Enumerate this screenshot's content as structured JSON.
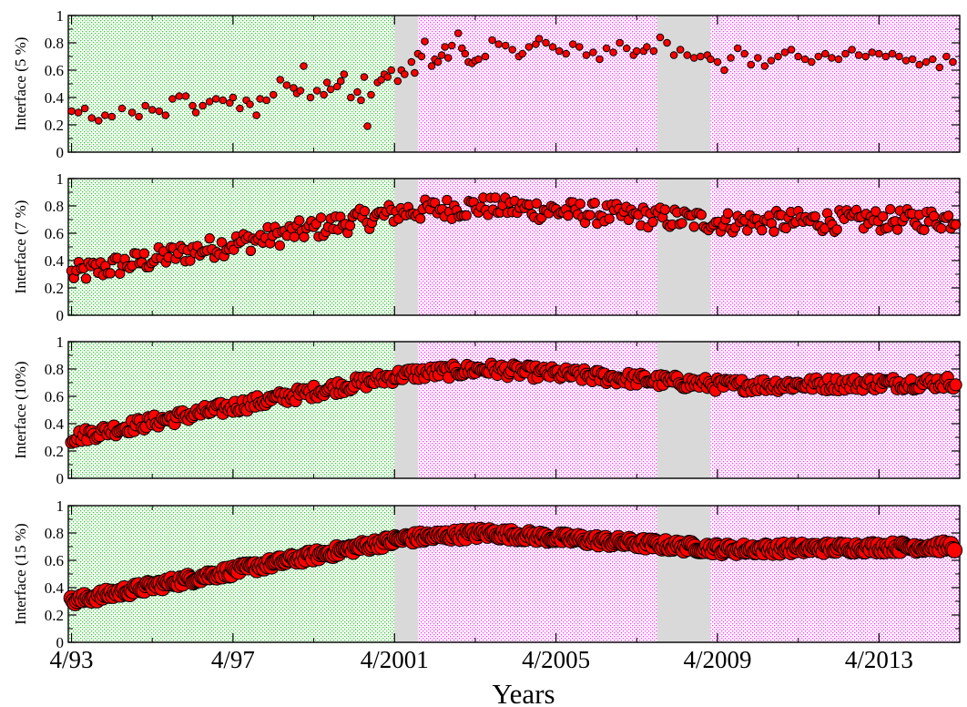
{
  "chart_data": {
    "type": "scatter",
    "xlabel": "Years",
    "x_ticks": [
      "4/93",
      "4/97",
      "4/2001",
      "4/2005",
      "4/2009",
      "4/2013"
    ],
    "x_tick_values": [
      1993.25,
      1997.25,
      2001.25,
      2005.25,
      2009.25,
      2013.25
    ],
    "xlim": [
      1993.17,
      2015.25
    ],
    "y_ticks": [
      "0",
      "0.2",
      "0.4",
      "0.6",
      "0.8",
      "1"
    ],
    "ylim": [
      0,
      1
    ],
    "grid": false,
    "background_regions": [
      {
        "x0": 1993.17,
        "x1": 2001.25,
        "color": "#33cc33",
        "pattern": "dotted"
      },
      {
        "x0": 2001.25,
        "x1": 2001.83,
        "color": "#d9d9d9",
        "pattern": "solid"
      },
      {
        "x0": 2001.83,
        "x1": 2007.75,
        "color": "#ff33ff",
        "pattern": "dotted"
      },
      {
        "x0": 2007.75,
        "x1": 2009.08,
        "color": "#d9d9d9",
        "pattern": "solid"
      },
      {
        "x0": 2009.08,
        "x1": 2015.25,
        "color": "#ff33ff",
        "pattern": "dotted"
      }
    ],
    "marker_color": "#ff0000",
    "panels": [
      {
        "ylabel": "Interface (5 %)",
        "marker_size": "small",
        "points": [
          [
            1993.25,
            0.3
          ],
          [
            1993.42,
            0.29
          ],
          [
            1993.58,
            0.32
          ],
          [
            1993.75,
            0.25
          ],
          [
            1993.92,
            0.23
          ],
          [
            1994.08,
            0.27
          ],
          [
            1994.25,
            0.26
          ],
          [
            1994.5,
            0.32
          ],
          [
            1994.75,
            0.29
          ],
          [
            1994.92,
            0.26
          ],
          [
            1995.08,
            0.34
          ],
          [
            1995.25,
            0.31
          ],
          [
            1995.42,
            0.3
          ],
          [
            1995.58,
            0.27
          ],
          [
            1995.75,
            0.39
          ],
          [
            1995.92,
            0.41
          ],
          [
            1996.08,
            0.41
          ],
          [
            1996.25,
            0.34
          ],
          [
            1996.33,
            0.29
          ],
          [
            1996.5,
            0.34
          ],
          [
            1996.67,
            0.37
          ],
          [
            1996.83,
            0.39
          ],
          [
            1997.0,
            0.38
          ],
          [
            1997.17,
            0.36
          ],
          [
            1997.25,
            0.4
          ],
          [
            1997.42,
            0.32
          ],
          [
            1997.58,
            0.38
          ],
          [
            1997.67,
            0.35
          ],
          [
            1997.83,
            0.27
          ],
          [
            1997.92,
            0.39
          ],
          [
            1998.08,
            0.38
          ],
          [
            1998.25,
            0.42
          ],
          [
            1998.42,
            0.53
          ],
          [
            1998.58,
            0.49
          ],
          [
            1998.75,
            0.47
          ],
          [
            1998.83,
            0.43
          ],
          [
            1998.92,
            0.45
          ],
          [
            1999.0,
            0.63
          ],
          [
            1999.17,
            0.4
          ],
          [
            1999.33,
            0.45
          ],
          [
            1999.5,
            0.42
          ],
          [
            1999.58,
            0.51
          ],
          [
            1999.67,
            0.46
          ],
          [
            1999.83,
            0.48
          ],
          [
            1999.92,
            0.52
          ],
          [
            2000.0,
            0.57
          ],
          [
            2000.17,
            0.4
          ],
          [
            2000.33,
            0.44
          ],
          [
            2000.42,
            0.38
          ],
          [
            2000.5,
            0.55
          ],
          [
            2000.58,
            0.19
          ],
          [
            2000.67,
            0.42
          ],
          [
            2000.83,
            0.51
          ],
          [
            2000.92,
            0.53
          ],
          [
            2001.0,
            0.57
          ],
          [
            2001.08,
            0.55
          ],
          [
            2001.17,
            0.6
          ],
          [
            2001.33,
            0.52
          ],
          [
            2001.42,
            0.6
          ],
          [
            2001.5,
            0.57
          ],
          [
            2001.67,
            0.66
          ],
          [
            2001.75,
            0.58
          ],
          [
            2001.83,
            0.72
          ],
          [
            2001.92,
            0.7
          ],
          [
            2002.0,
            0.81
          ],
          [
            2002.17,
            0.63
          ],
          [
            2002.25,
            0.68
          ],
          [
            2002.33,
            0.66
          ],
          [
            2002.42,
            0.71
          ],
          [
            2002.5,
            0.77
          ],
          [
            2002.58,
            0.69
          ],
          [
            2002.67,
            0.78
          ],
          [
            2002.83,
            0.87
          ],
          [
            2002.92,
            0.76
          ],
          [
            2003.0,
            0.72
          ],
          [
            2003.08,
            0.66
          ],
          [
            2003.17,
            0.65
          ],
          [
            2003.25,
            0.67
          ],
          [
            2003.33,
            0.68
          ],
          [
            2003.5,
            0.7
          ],
          [
            2003.67,
            0.82
          ],
          [
            2003.83,
            0.79
          ],
          [
            2004.0,
            0.78
          ],
          [
            2004.17,
            0.75
          ],
          [
            2004.33,
            0.7
          ],
          [
            2004.42,
            0.72
          ],
          [
            2004.58,
            0.77
          ],
          [
            2004.75,
            0.79
          ],
          [
            2004.83,
            0.83
          ],
          [
            2005.0,
            0.8
          ],
          [
            2005.17,
            0.77
          ],
          [
            2005.33,
            0.74
          ],
          [
            2005.5,
            0.72
          ],
          [
            2005.67,
            0.79
          ],
          [
            2005.83,
            0.77
          ],
          [
            2006.0,
            0.71
          ],
          [
            2006.17,
            0.73
          ],
          [
            2006.33,
            0.68
          ],
          [
            2006.5,
            0.76
          ],
          [
            2006.67,
            0.73
          ],
          [
            2006.83,
            0.8
          ],
          [
            2007.0,
            0.76
          ],
          [
            2007.17,
            0.71
          ],
          [
            2007.25,
            0.74
          ],
          [
            2007.42,
            0.74
          ],
          [
            2007.5,
            0.77
          ],
          [
            2007.67,
            0.74
          ],
          [
            2007.83,
            0.84
          ],
          [
            2008.0,
            0.8
          ],
          [
            2008.17,
            0.71
          ],
          [
            2008.33,
            0.75
          ],
          [
            2008.5,
            0.71
          ],
          [
            2008.67,
            0.69
          ],
          [
            2008.83,
            0.7
          ],
          [
            2009.0,
            0.71
          ],
          [
            2009.08,
            0.68
          ],
          [
            2009.25,
            0.66
          ],
          [
            2009.42,
            0.6
          ],
          [
            2009.58,
            0.69
          ],
          [
            2009.75,
            0.76
          ],
          [
            2009.92,
            0.72
          ],
          [
            2010.08,
            0.64
          ],
          [
            2010.25,
            0.69
          ],
          [
            2010.42,
            0.63
          ],
          [
            2010.58,
            0.67
          ],
          [
            2010.75,
            0.7
          ],
          [
            2010.92,
            0.73
          ],
          [
            2011.08,
            0.75
          ],
          [
            2011.25,
            0.7
          ],
          [
            2011.42,
            0.68
          ],
          [
            2011.58,
            0.66
          ],
          [
            2011.75,
            0.7
          ],
          [
            2011.92,
            0.72
          ],
          [
            2012.08,
            0.69
          ],
          [
            2012.25,
            0.68
          ],
          [
            2012.42,
            0.72
          ],
          [
            2012.58,
            0.75
          ],
          [
            2012.75,
            0.71
          ],
          [
            2012.92,
            0.7
          ],
          [
            2013.08,
            0.73
          ],
          [
            2013.25,
            0.72
          ],
          [
            2013.42,
            0.7
          ],
          [
            2013.58,
            0.72
          ],
          [
            2013.75,
            0.7
          ],
          [
            2013.92,
            0.67
          ],
          [
            2014.08,
            0.68
          ],
          [
            2014.25,
            0.64
          ],
          [
            2014.42,
            0.66
          ],
          [
            2014.58,
            0.68
          ],
          [
            2014.75,
            0.62
          ],
          [
            2014.92,
            0.7
          ],
          [
            2015.08,
            0.66
          ]
        ]
      },
      {
        "ylabel": "Interface (7 %)",
        "marker_size": "medium",
        "points": []
      },
      {
        "ylabel": "Interface (10%)",
        "marker_size": "large",
        "points": []
      },
      {
        "ylabel": "Interface (15 %)",
        "marker_size": "xlarge",
        "points": []
      }
    ]
  }
}
